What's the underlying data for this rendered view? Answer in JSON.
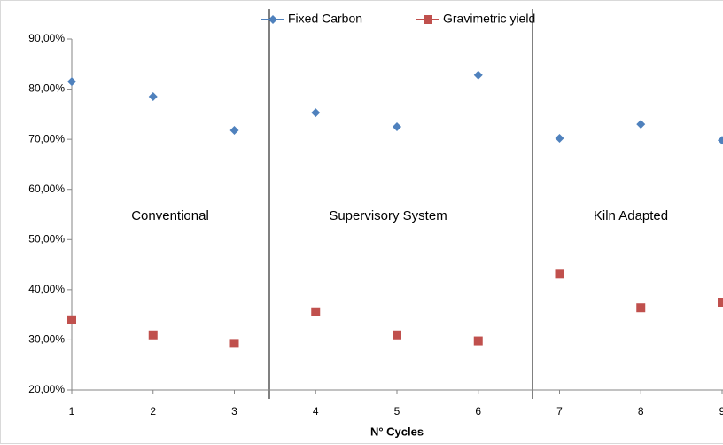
{
  "chart_data": {
    "type": "scatter",
    "xlabel": "N° Cycles",
    "x": [
      1,
      2,
      3,
      4,
      5,
      6,
      7,
      8,
      9
    ],
    "series": [
      {
        "name": "Fixed Carbon",
        "color": "#4f81bd",
        "marker": "diamond",
        "values": [
          81.5,
          78.5,
          71.8,
          75.3,
          72.5,
          82.8,
          70.2,
          73.0,
          69.8
        ]
      },
      {
        "name": "Gravimetric yield",
        "color": "#c0504d",
        "marker": "square",
        "values": [
          34.0,
          31.0,
          29.3,
          35.6,
          31.0,
          29.8,
          43.1,
          36.4,
          37.5
        ]
      }
    ],
    "xlim": [
      1,
      9
    ],
    "xticks": [
      1,
      2,
      3,
      4,
      5,
      6,
      7,
      8,
      9
    ],
    "ylim": [
      20,
      90
    ],
    "yticks": [
      {
        "value": 20,
        "label": "20,00%"
      },
      {
        "value": 30,
        "label": "30,00%"
      },
      {
        "value": 40,
        "label": "40,00%"
      },
      {
        "value": 50,
        "label": "50,00%"
      },
      {
        "value": 60,
        "label": "60,00%"
      },
      {
        "value": 70,
        "label": "70,00%"
      },
      {
        "value": 80,
        "label": "80,00%"
      },
      {
        "value": 90,
        "label": "90,00%"
      }
    ],
    "annotations": [
      "Conventional",
      "Supervisory System",
      "Kiln Adapted"
    ],
    "grid": false,
    "legend": "top"
  }
}
